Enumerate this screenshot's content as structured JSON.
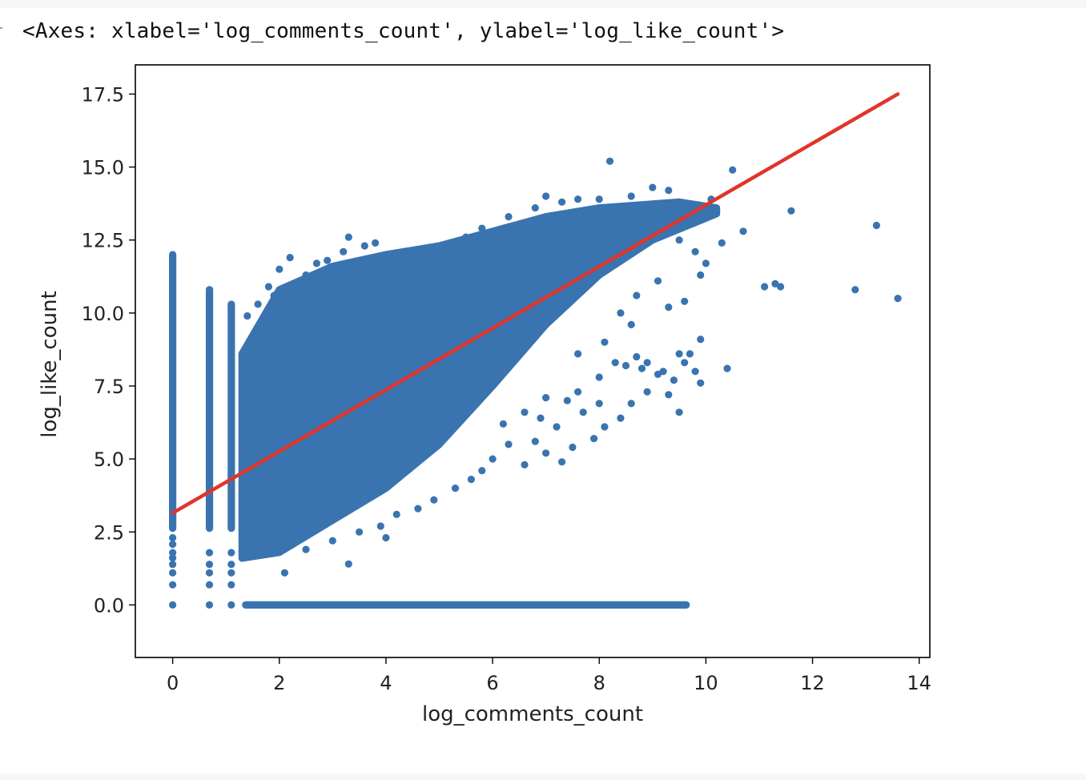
{
  "output_repr": "<Axes: xlabel='log_comments_count', ylabel='log_like_count'>",
  "chart_data": {
    "type": "scatter",
    "xlabel": "log_comments_count",
    "ylabel": "log_like_count",
    "xlim": [
      -0.7,
      14.2
    ],
    "ylim": [
      -1.8,
      18.5
    ],
    "xticks": [
      0,
      2,
      4,
      6,
      8,
      10,
      12,
      14
    ],
    "yticks": [
      0.0,
      2.5,
      5.0,
      7.5,
      10.0,
      12.5,
      15.0,
      17.5
    ],
    "xtick_labels": [
      "0",
      "2",
      "4",
      "6",
      "8",
      "10",
      "12",
      "14"
    ],
    "ytick_labels": [
      "0.0",
      "2.5",
      "5.0",
      "7.5",
      "10.0",
      "12.5",
      "15.0",
      "17.5"
    ],
    "grid": false,
    "point_color": "#3a74b0",
    "regression_color": "#e0352b",
    "regression_line": {
      "x": [
        0,
        13.6
      ],
      "y": [
        3.15,
        17.5
      ]
    },
    "dense_region": {
      "upper_edge": [
        [
          1.3,
          8.6
        ],
        [
          2,
          10.8
        ],
        [
          3,
          11.6
        ],
        [
          4,
          12.0
        ],
        [
          5,
          12.3
        ],
        [
          6,
          12.8
        ],
        [
          7,
          13.3
        ],
        [
          8,
          13.6
        ],
        [
          9.5,
          13.8
        ],
        [
          10.2,
          13.6
        ]
      ],
      "lower_edge": [
        [
          10.2,
          13.4
        ],
        [
          9,
          12.5
        ],
        [
          8,
          11.3
        ],
        [
          7,
          9.6
        ],
        [
          6,
          7.5
        ],
        [
          5,
          5.5
        ],
        [
          4,
          4.0
        ],
        [
          3,
          2.9
        ],
        [
          2,
          1.8
        ],
        [
          1.3,
          1.6
        ]
      ]
    },
    "zero_x_column": {
      "x": 0,
      "y_max": 12.0
    },
    "columns": [
      {
        "x": 0.69,
        "y_max": 10.8
      },
      {
        "x": 1.1,
        "y_max": 10.3
      }
    ],
    "zero_y_row": {
      "x_max": 9.7
    },
    "points": [
      [
        0,
        0
      ],
      [
        0,
        0.69
      ],
      [
        0,
        1.1
      ],
      [
        0,
        1.39
      ],
      [
        0,
        1.61
      ],
      [
        0,
        1.79
      ],
      [
        0,
        2.08
      ],
      [
        0,
        2.3
      ],
      [
        0.69,
        0
      ],
      [
        0.69,
        0.69
      ],
      [
        0.69,
        1.1
      ],
      [
        0.69,
        1.39
      ],
      [
        0.69,
        1.79
      ],
      [
        1.1,
        0
      ],
      [
        1.1,
        0.69
      ],
      [
        1.1,
        1.1
      ],
      [
        1.1,
        1.39
      ],
      [
        1.1,
        1.79
      ],
      [
        8.2,
        15.2
      ],
      [
        10.5,
        14.9
      ],
      [
        10.7,
        12.8
      ],
      [
        11.6,
        13.5
      ],
      [
        13.2,
        13.0
      ],
      [
        11.1,
        10.9
      ],
      [
        11.3,
        11.0
      ],
      [
        11.4,
        10.9
      ],
      [
        12.8,
        10.8
      ],
      [
        13.6,
        10.5
      ],
      [
        9.9,
        9.1
      ],
      [
        9.6,
        8.3
      ],
      [
        9.8,
        8.0
      ],
      [
        10.4,
        8.1
      ],
      [
        9.4,
        7.7
      ],
      [
        9.1,
        7.9
      ],
      [
        8.7,
        8.5
      ],
      [
        8.9,
        8.3
      ],
      [
        9.5,
        8.6
      ],
      [
        9.9,
        7.6
      ],
      [
        9.3,
        7.2
      ],
      [
        9.5,
        6.6
      ],
      [
        7.3,
        4.9
      ],
      [
        7.0,
        5.2
      ],
      [
        6.8,
        5.6
      ],
      [
        7.5,
        5.4
      ],
      [
        7.9,
        5.7
      ],
      [
        8.1,
        6.1
      ],
      [
        8.4,
        6.4
      ],
      [
        8.6,
        6.9
      ],
      [
        8.9,
        7.3
      ],
      [
        8.0,
        6.9
      ],
      [
        7.7,
        6.6
      ],
      [
        7.2,
        6.1
      ],
      [
        6.6,
        4.8
      ],
      [
        6.3,
        5.5
      ],
      [
        6.0,
        5.0
      ],
      [
        5.8,
        4.6
      ],
      [
        6.9,
        6.4
      ],
      [
        7.4,
        7.0
      ],
      [
        6.2,
        6.2
      ],
      [
        6.6,
        6.6
      ],
      [
        7.0,
        7.1
      ],
      [
        7.6,
        7.3
      ],
      [
        8.0,
        7.8
      ],
      [
        8.3,
        8.3
      ],
      [
        8.5,
        8.2
      ],
      [
        8.8,
        8.1
      ],
      [
        9.2,
        8.0
      ],
      [
        9.7,
        8.6
      ],
      [
        8.1,
        9.0
      ],
      [
        7.6,
        8.6
      ],
      [
        8.6,
        9.6
      ],
      [
        8.4,
        10.0
      ],
      [
        8.7,
        10.6
      ],
      [
        9.1,
        11.1
      ],
      [
        9.3,
        10.2
      ],
      [
        9.6,
        10.4
      ],
      [
        9.5,
        12.5
      ],
      [
        9.8,
        12.1
      ],
      [
        10.3,
        12.4
      ],
      [
        10.0,
        11.7
      ],
      [
        9.9,
        11.3
      ],
      [
        10.1,
        13.9
      ],
      [
        3.3,
        1.4
      ],
      [
        2.1,
        1.1
      ],
      [
        3.9,
        2.7
      ],
      [
        4.2,
        3.1
      ],
      [
        4.6,
        3.3
      ],
      [
        4.9,
        3.6
      ],
      [
        5.3,
        4.0
      ],
      [
        5.6,
        4.3
      ],
      [
        3.0,
        2.2
      ],
      [
        2.5,
        1.9
      ],
      [
        4.0,
        2.3
      ],
      [
        3.5,
        2.5
      ],
      [
        2.4,
        10.4
      ],
      [
        1.9,
        10.6
      ],
      [
        2.2,
        11.9
      ],
      [
        2.5,
        11.3
      ],
      [
        2.7,
        11.7
      ],
      [
        2.9,
        11.8
      ],
      [
        3.2,
        12.1
      ],
      [
        3.3,
        12.6
      ],
      [
        3.6,
        12.3
      ],
      [
        3.4,
        11.2
      ],
      [
        2.0,
        11.5
      ],
      [
        1.8,
        10.9
      ],
      [
        1.6,
        10.3
      ],
      [
        1.4,
        9.9
      ],
      [
        3.1,
        11.5
      ],
      [
        3.8,
        12.4
      ],
      [
        2.8,
        10.7
      ],
      [
        3.0,
        11.0
      ],
      [
        2.6,
        10.1
      ],
      [
        2.3,
        9.8
      ],
      [
        6.3,
        13.3
      ],
      [
        7.0,
        14.0
      ],
      [
        6.8,
        13.6
      ],
      [
        7.3,
        13.8
      ],
      [
        7.6,
        13.9
      ],
      [
        5.8,
        12.9
      ],
      [
        9.3,
        14.2
      ],
      [
        9.0,
        14.3
      ],
      [
        8.6,
        14.0
      ],
      [
        8.0,
        13.9
      ],
      [
        4.5,
        12.0
      ],
      [
        4.8,
        12.2
      ],
      [
        5.2,
        12.4
      ],
      [
        5.5,
        12.6
      ]
    ]
  }
}
